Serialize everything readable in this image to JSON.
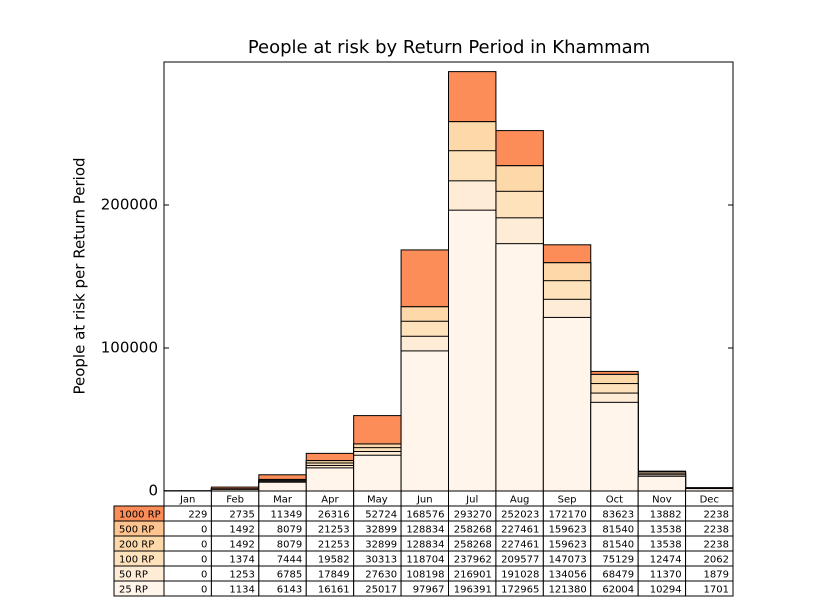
{
  "chart_data": {
    "type": "bar",
    "title": "People at risk by Return Period in Khammam",
    "y_label": "People at risk per Return Period",
    "categories": [
      "Jan",
      "Feb",
      "Mar",
      "Apr",
      "May",
      "Jun",
      "Jul",
      "Aug",
      "Sep",
      "Oct",
      "Nov",
      "Dec"
    ],
    "ylim": [
      0,
      300000
    ],
    "yticks": [
      0,
      100000,
      200000
    ],
    "series": [
      {
        "name": "1000 RP",
        "color": "#fc8d59",
        "values": [
          229,
          2735,
          11349,
          26316,
          52724,
          168576,
          293270,
          252023,
          172170,
          83623,
          13882,
          2238
        ]
      },
      {
        "name": "500 RP",
        "color": "#fdc48f",
        "values": [
          0,
          1492,
          8079,
          21253,
          32899,
          128834,
          258268,
          227461,
          159623,
          81540,
          13538,
          2238
        ]
      },
      {
        "name": "200 RP",
        "color": "#fdd8a9",
        "values": [
          0,
          1492,
          8079,
          21253,
          32899,
          128834,
          258268,
          227461,
          159623,
          81540,
          13538,
          2238
        ]
      },
      {
        "name": "100 RP",
        "color": "#fee2bc",
        "values": [
          0,
          1374,
          7444,
          19582,
          30313,
          118704,
          237962,
          209577,
          147073,
          75129,
          12474,
          2062
        ]
      },
      {
        "name": "50 RP",
        "color": "#feecd6",
        "values": [
          0,
          1253,
          6785,
          17849,
          27630,
          108198,
          216901,
          191028,
          134056,
          68479,
          11370,
          1879
        ]
      },
      {
        "name": "25 RP",
        "color": "#fff5eb",
        "values": [
          0,
          1134,
          6143,
          16161,
          25017,
          97967,
          196391,
          172965,
          121380,
          62004,
          10294,
          1701
        ]
      }
    ]
  }
}
